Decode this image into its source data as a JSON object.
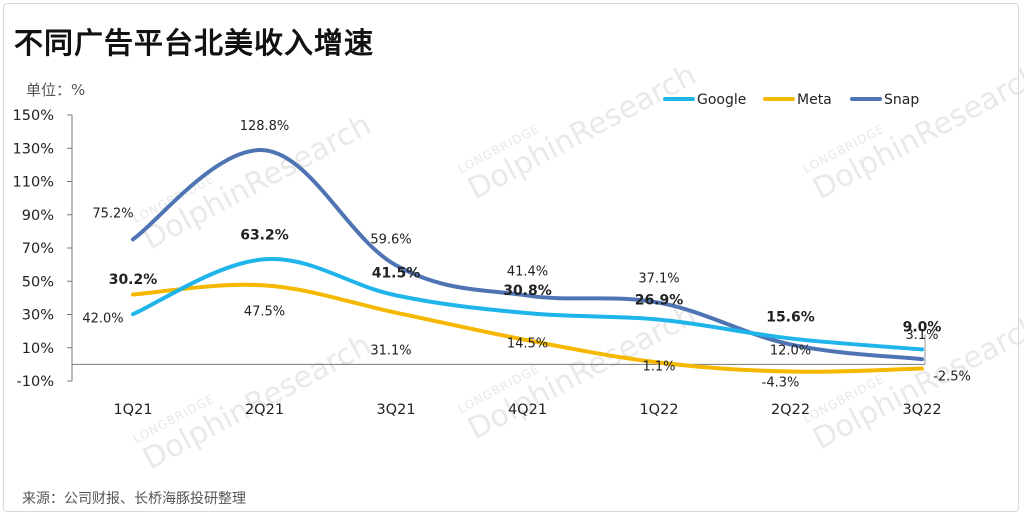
{
  "title": "不同广告平台北美收入增速",
  "unit_label": "单位：%",
  "source": "来源：公司财报、长桥海豚投研整理",
  "watermark": {
    "brand": "DolphinResearch",
    "brand_small": "LONGBRIDGE"
  },
  "chart_data": {
    "type": "line",
    "categories": [
      "1Q21",
      "2Q21",
      "3Q21",
      "4Q21",
      "1Q22",
      "2Q22",
      "3Q22"
    ],
    "ylim": [
      -10,
      150
    ],
    "yticks": [
      -10,
      10,
      30,
      50,
      70,
      90,
      110,
      130,
      150
    ],
    "ytick_labels": [
      "-10%",
      "10%",
      "30%",
      "50%",
      "70%",
      "90%",
      "110%",
      "130%",
      "150%"
    ],
    "legend_position": "top-right",
    "grid": false,
    "series": [
      {
        "name": "Google",
        "color": "#1fb5ea",
        "values": [
          30.2,
          63.2,
          41.5,
          30.8,
          26.9,
          15.6,
          9.0
        ],
        "labels": [
          "30.2%",
          "63.2%",
          "41.5%",
          "30.8%",
          "26.9%",
          "15.6%",
          "9.0%"
        ]
      },
      {
        "name": "Meta",
        "color": "#f5b800",
        "values": [
          42.0,
          47.5,
          31.1,
          14.5,
          1.1,
          -4.3,
          -2.5
        ],
        "labels": [
          "42.0%",
          "47.5%",
          "31.1%",
          "14.5%",
          "1.1%",
          "-4.3%",
          "-2.5%"
        ]
      },
      {
        "name": "Snap",
        "color": "#4f74b3",
        "values": [
          75.2,
          128.8,
          59.6,
          41.4,
          37.1,
          12.0,
          3.1
        ],
        "labels": [
          "75.2%",
          "128.8%",
          "59.6%",
          "41.4%",
          "37.1%",
          "12.0%",
          "3.1%"
        ]
      }
    ]
  }
}
